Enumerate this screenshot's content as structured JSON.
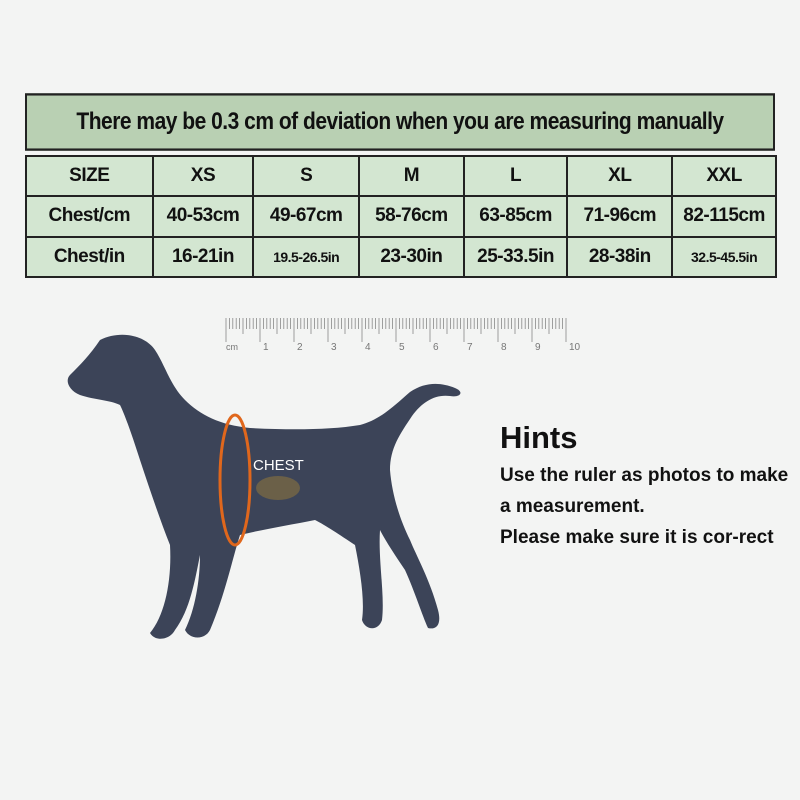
{
  "banner": "There may be 0.3 cm of deviation when you are measuring manually",
  "table": {
    "header": [
      "SIZE",
      "XS",
      "S",
      "M",
      "L",
      "XL",
      "XXL"
    ],
    "rows": [
      [
        "Chest/cm",
        "40-53cm",
        "49-67cm",
        "58-76cm",
        "63-85cm",
        "71-96cm",
        "82-115cm"
      ],
      [
        "Chest/in",
        "16-21in",
        "19.5-26.5in",
        "23-30in",
        "25-33.5in",
        "28-38in",
        "32.5-45.5in"
      ]
    ]
  },
  "ruler": {
    "unit": "cm",
    "labels": [
      "1",
      "2",
      "3",
      "4",
      "5",
      "6",
      "7",
      "8",
      "9",
      "10"
    ]
  },
  "dog": {
    "label": "CHEST",
    "marker_color": "#e0671c"
  },
  "hints": {
    "title": "Hints",
    "lines": [
      "Use the ruler as photos to make a measurement.",
      "Please make sure it is cor-rect"
    ]
  }
}
